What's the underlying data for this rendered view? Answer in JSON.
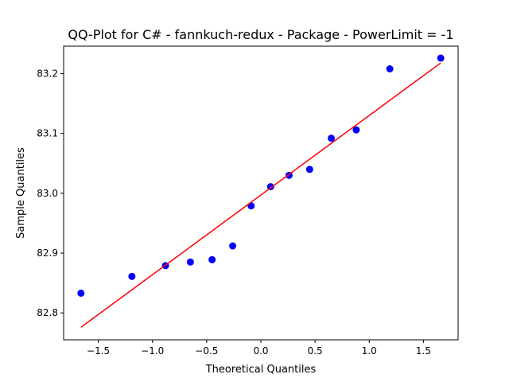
{
  "chart_data": {
    "type": "scatter",
    "title": "QQ-Plot for C# - fannkuch-redux - Package - PowerLimit = -1",
    "xlabel": "Theoretical Quantiles",
    "ylabel": "Sample Quantiles",
    "xlim": [
      -1.82,
      1.82
    ],
    "ylim": [
      82.755,
      83.246
    ],
    "x_ticks": [
      -1.5,
      -1.0,
      -0.5,
      0.0,
      0.5,
      1.0,
      1.5
    ],
    "x_tick_labels": [
      "−1.5",
      "−1.0",
      "−0.5",
      "0.0",
      "0.5",
      "1.0",
      "1.5"
    ],
    "y_ticks": [
      82.8,
      82.9,
      83.0,
      83.1,
      83.2
    ],
    "y_tick_labels": [
      "82.8",
      "82.9",
      "83.0",
      "83.1",
      "83.2"
    ],
    "grid": false,
    "series": [
      {
        "kind": "points",
        "color": "#0000ff",
        "points": [
          {
            "x": -1.66,
            "y": 82.833
          },
          {
            "x": -1.19,
            "y": 82.861
          },
          {
            "x": -0.88,
            "y": 82.879
          },
          {
            "x": -0.65,
            "y": 82.885
          },
          {
            "x": -0.45,
            "y": 82.889
          },
          {
            "x": -0.26,
            "y": 82.912
          },
          {
            "x": -0.09,
            "y": 82.979
          },
          {
            "x": 0.09,
            "y": 83.011
          },
          {
            "x": 0.26,
            "y": 83.03
          },
          {
            "x": 0.45,
            "y": 83.04
          },
          {
            "x": 0.65,
            "y": 83.092
          },
          {
            "x": 0.88,
            "y": 83.106
          },
          {
            "x": 1.19,
            "y": 83.208
          },
          {
            "x": 1.66,
            "y": 83.226
          }
        ]
      },
      {
        "kind": "line",
        "color": "#ff0000",
        "points": [
          {
            "x": -1.66,
            "y": 82.776
          },
          {
            "x": 1.66,
            "y": 83.218
          }
        ]
      }
    ]
  }
}
